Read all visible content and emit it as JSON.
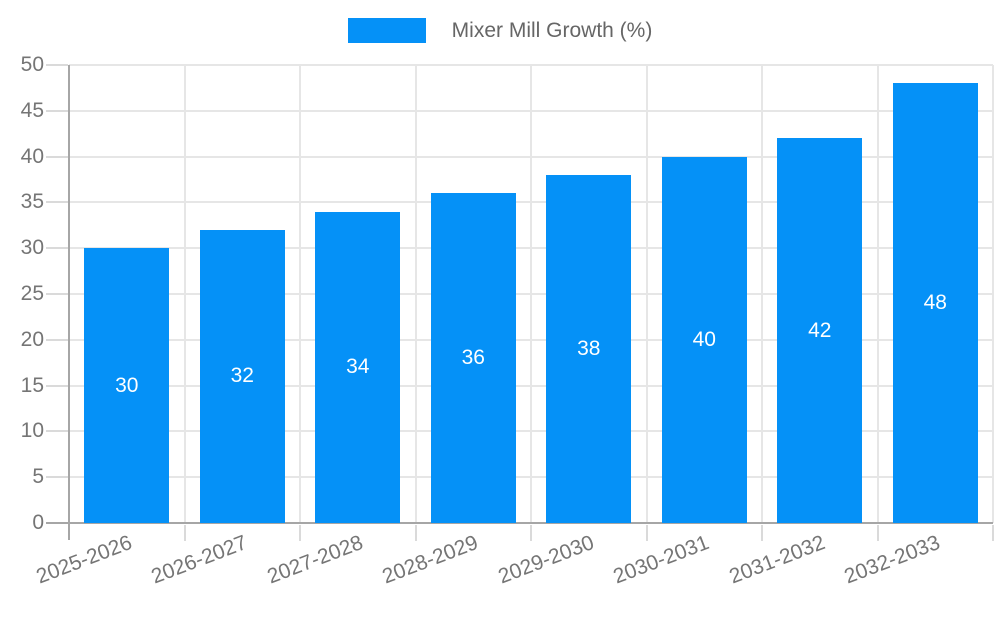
{
  "chart_data": {
    "type": "bar",
    "title": "",
    "legend": {
      "label": "Mixer Mill Growth (%)",
      "position": "top"
    },
    "categories": [
      "2025-2026",
      "2026-2027",
      "2027-2028",
      "2028-2029",
      "2029-2030",
      "2030-2031",
      "2031-2032",
      "2032-2033"
    ],
    "series": [
      {
        "name": "Mixer Mill Growth (%)",
        "values": [
          30,
          32,
          34,
          36,
          38,
          40,
          42,
          48
        ]
      }
    ],
    "value_labels": [
      "30",
      "32",
      "34",
      "36",
      "38",
      "40",
      "42",
      "48"
    ],
    "xlabel": "",
    "ylabel": "",
    "ylim": [
      0,
      50
    ],
    "ytick_step": 5,
    "yticks": [
      "0",
      "5",
      "10",
      "15",
      "20",
      "25",
      "30",
      "35",
      "40",
      "45",
      "50"
    ],
    "grid": true,
    "colors": {
      "bar": "#0591F7",
      "grid": "#E6E6E6",
      "axis": "#A6A6A6",
      "tick": "#DADADA",
      "tick_label": "#757575",
      "legend_text": "#666666",
      "value_label": "#FFFFFF",
      "background": "#FFFFFF"
    }
  }
}
